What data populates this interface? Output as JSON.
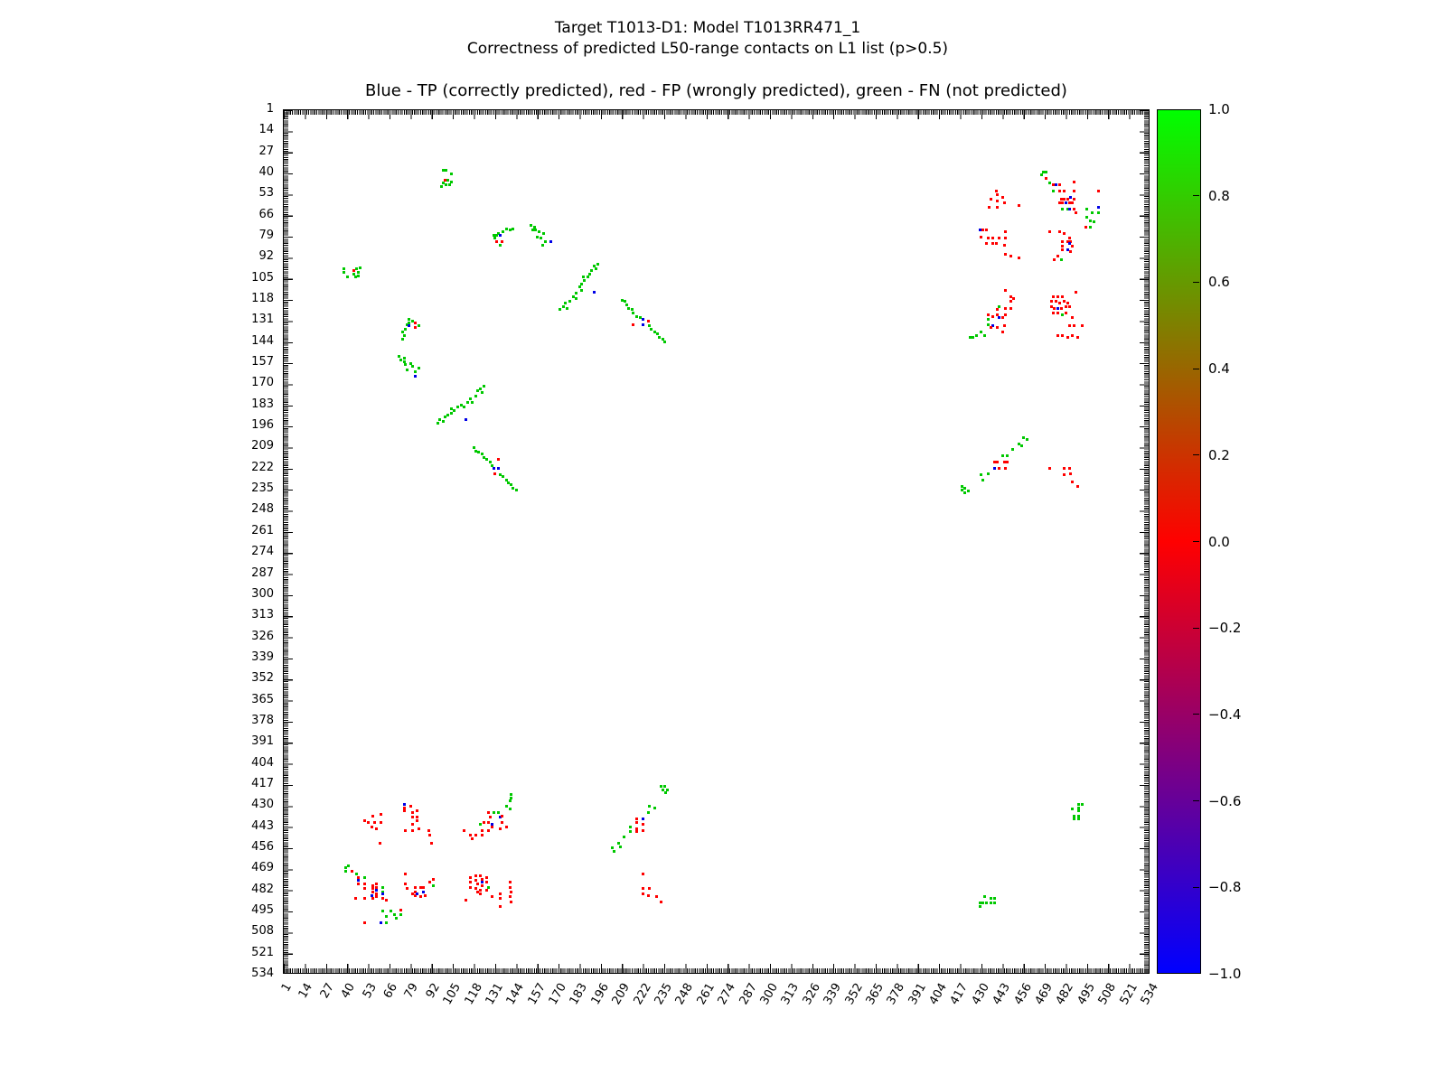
{
  "figure": {
    "title_line1": "Target T1013-D1: Model T1013RR471_1",
    "title_line2": "Correctness of predicted L50-range contacts on L1 list (p>0.5)",
    "axes_title": "Blue - TP (correctly predicted), red - FP (wrongly predicted), green - FN (not predicted)",
    "background": "#ffffff"
  },
  "chart_data": {
    "type": "scatter",
    "title": "Blue - TP (correctly predicted), red - FP (wrongly predicted), green - FN (not predicted)",
    "xlabel": "",
    "ylabel": "",
    "xlim": [
      1,
      534
    ],
    "ylim": [
      534,
      1
    ],
    "grid": false,
    "x_ticks": [
      1,
      14,
      27,
      40,
      53,
      66,
      79,
      92,
      105,
      118,
      131,
      144,
      157,
      170,
      183,
      196,
      209,
      222,
      235,
      248,
      261,
      274,
      287,
      300,
      313,
      326,
      339,
      352,
      365,
      378,
      391,
      404,
      417,
      430,
      443,
      456,
      469,
      482,
      495,
      508,
      521,
      534
    ],
    "y_ticks": [
      1,
      14,
      27,
      40,
      53,
      66,
      79,
      92,
      105,
      118,
      131,
      144,
      157,
      170,
      183,
      196,
      209,
      222,
      235,
      248,
      261,
      274,
      287,
      300,
      313,
      326,
      339,
      352,
      365,
      378,
      391,
      404,
      417,
      430,
      443,
      456,
      469,
      482,
      495,
      508,
      521,
      534
    ],
    "legend": [
      {
        "label": "TP (correctly predicted)",
        "color_name": "blue"
      },
      {
        "label": "FP (wrongly predicted)",
        "color_name": "red"
      },
      {
        "label": "FN (not predicted)",
        "color_name": "green"
      }
    ],
    "colors": {
      "TP": "#0000e6",
      "FP": "#ff0000",
      "FN": "#00c800"
    },
    "symmetric": true,
    "colorbar": {
      "min": -1.0,
      "max": 1.0,
      "tick_labels": [
        "1.0",
        "0.8",
        "0.6",
        "0.4",
        "0.2",
        "0.0",
        "−0.2",
        "−0.4",
        "−0.6",
        "−0.8",
        "−1.0"
      ],
      "gradient": {
        "top": "#00ff00",
        "middle": "#ff0000",
        "bottom": "#0000ff"
      }
    },
    "contacts": [
      [
        38,
        99,
        "G"
      ],
      [
        38,
        101,
        "G"
      ],
      [
        40,
        104,
        "G"
      ],
      [
        44,
        100,
        "R"
      ],
      [
        44,
        102,
        "G"
      ],
      [
        45,
        104,
        "G"
      ],
      [
        46,
        99,
        "G"
      ],
      [
        47,
        101,
        "G"
      ],
      [
        47,
        103,
        "G"
      ],
      [
        48,
        98,
        "G"
      ],
      [
        74,
        138,
        "G"
      ],
      [
        74,
        142,
        "G"
      ],
      [
        75,
        140,
        "G"
      ],
      [
        76,
        136,
        "G"
      ],
      [
        77,
        133,
        "G"
      ],
      [
        78,
        130,
        "G"
      ],
      [
        78,
        132,
        "G"
      ],
      [
        78,
        134,
        "B"
      ],
      [
        80,
        131,
        "G"
      ],
      [
        82,
        132,
        "R"
      ],
      [
        82,
        135,
        "R"
      ],
      [
        84,
        134,
        "G"
      ],
      [
        72,
        153,
        "G"
      ],
      [
        73,
        155,
        "G"
      ],
      [
        75,
        154,
        "G"
      ],
      [
        75,
        156,
        "G"
      ],
      [
        76,
        158,
        "G"
      ],
      [
        77,
        161,
        "G"
      ],
      [
        79,
        157,
        "G"
      ],
      [
        80,
        159,
        "G"
      ],
      [
        82,
        162,
        "G"
      ],
      [
        82,
        165,
        "B"
      ],
      [
        84,
        160,
        "G"
      ],
      [
        96,
        194,
        "G"
      ],
      [
        97,
        192,
        "G"
      ],
      [
        99,
        193,
        "G"
      ],
      [
        100,
        190,
        "G"
      ],
      [
        102,
        189,
        "G"
      ],
      [
        104,
        185,
        "G"
      ],
      [
        104,
        188,
        "G"
      ],
      [
        106,
        186,
        "G"
      ],
      [
        108,
        184,
        "G"
      ],
      [
        110,
        183,
        "G"
      ],
      [
        112,
        184,
        "G"
      ],
      [
        113,
        192,
        "B"
      ],
      [
        114,
        181,
        "G"
      ],
      [
        116,
        179,
        "G"
      ],
      [
        117,
        181,
        "G"
      ],
      [
        119,
        177,
        "G"
      ],
      [
        120,
        174,
        "G"
      ],
      [
        122,
        173,
        "G"
      ],
      [
        123,
        175,
        "G"
      ],
      [
        124,
        171,
        "G"
      ],
      [
        118,
        209,
        "G"
      ],
      [
        119,
        211,
        "G"
      ],
      [
        121,
        212,
        "G"
      ],
      [
        123,
        213,
        "G"
      ],
      [
        124,
        215,
        "G"
      ],
      [
        126,
        216,
        "G"
      ],
      [
        128,
        218,
        "G"
      ],
      [
        129,
        220,
        "G"
      ],
      [
        130,
        222,
        "B"
      ],
      [
        131,
        225,
        "R"
      ],
      [
        133,
        216,
        "R"
      ],
      [
        133,
        222,
        "B"
      ],
      [
        134,
        226,
        "G"
      ],
      [
        136,
        227,
        "G"
      ],
      [
        138,
        229,
        "G"
      ],
      [
        139,
        231,
        "G"
      ],
      [
        141,
        232,
        "G"
      ],
      [
        142,
        234,
        "G"
      ],
      [
        144,
        235,
        "G"
      ],
      [
        39,
        468,
        "G"
      ],
      [
        39,
        470,
        "G"
      ],
      [
        41,
        467,
        "G"
      ],
      [
        43,
        470,
        "R"
      ],
      [
        45,
        487,
        "R"
      ],
      [
        46,
        472,
        "G"
      ],
      [
        47,
        474,
        "R"
      ],
      [
        47,
        476,
        "B"
      ],
      [
        47,
        478,
        "R"
      ],
      [
        51,
        474,
        "G"
      ],
      [
        51,
        478,
        "R"
      ],
      [
        51,
        481,
        "R"
      ],
      [
        51,
        487,
        "R"
      ],
      [
        51,
        502,
        "R"
      ],
      [
        55,
        485,
        "B"
      ],
      [
        56,
        479,
        "R"
      ],
      [
        56,
        481,
        "R"
      ],
      [
        56,
        483,
        "R"
      ],
      [
        56,
        487,
        "R"
      ],
      [
        58,
        478,
        "R"
      ],
      [
        58,
        480,
        "R"
      ],
      [
        58,
        482,
        "B"
      ],
      [
        58,
        484,
        "R"
      ],
      [
        58,
        486,
        "R"
      ],
      [
        60,
        453,
        "R"
      ],
      [
        61,
        502,
        "B"
      ],
      [
        62,
        480,
        "G"
      ],
      [
        62,
        483,
        "G"
      ],
      [
        62,
        484,
        "B"
      ],
      [
        62,
        487,
        "R"
      ],
      [
        62,
        495,
        "G"
      ],
      [
        64,
        488,
        "R"
      ],
      [
        64,
        498,
        "G"
      ],
      [
        64,
        502,
        "G"
      ],
      [
        67,
        495,
        "G"
      ],
      [
        69,
        497,
        "G"
      ],
      [
        70,
        499,
        "G"
      ],
      [
        73,
        494,
        "R"
      ],
      [
        73,
        497,
        "G"
      ],
      [
        76,
        472,
        "R"
      ],
      [
        76,
        478,
        "R"
      ],
      [
        77,
        481,
        "R"
      ],
      [
        80,
        484,
        "R"
      ],
      [
        82,
        480,
        "R"
      ],
      [
        82,
        483,
        "R"
      ],
      [
        82,
        485,
        "R"
      ],
      [
        83,
        484,
        "B"
      ],
      [
        85,
        480,
        "R"
      ],
      [
        85,
        486,
        "R"
      ],
      [
        87,
        480,
        "R"
      ],
      [
        87,
        483,
        "B"
      ],
      [
        88,
        485,
        "R"
      ],
      [
        91,
        477,
        "R"
      ],
      [
        93,
        475,
        "R"
      ],
      [
        93,
        479,
        "G"
      ],
      [
        51,
        439,
        "R"
      ],
      [
        53,
        440,
        "R"
      ],
      [
        55,
        443,
        "R"
      ],
      [
        56,
        436,
        "R"
      ],
      [
        57,
        440,
        "R"
      ],
      [
        58,
        444,
        "R"
      ],
      [
        61,
        435,
        "R"
      ],
      [
        61,
        440,
        "R"
      ],
      [
        75,
        429,
        "B"
      ],
      [
        75,
        431,
        "R"
      ],
      [
        75,
        433,
        "R"
      ],
      [
        76,
        445,
        "R"
      ],
      [
        79,
        430,
        "R"
      ],
      [
        80,
        434,
        "R"
      ],
      [
        80,
        437,
        "R"
      ],
      [
        80,
        441,
        "R"
      ],
      [
        80,
        445,
        "R"
      ],
      [
        83,
        433,
        "R"
      ],
      [
        83,
        437,
        "R"
      ],
      [
        83,
        439,
        "R"
      ],
      [
        84,
        444,
        "R"
      ],
      [
        90,
        445,
        "R"
      ],
      [
        91,
        448,
        "R"
      ],
      [
        92,
        453,
        "R"
      ],
      [
        112,
        445,
        "R"
      ],
      [
        116,
        448,
        "R"
      ],
      [
        117,
        450,
        "R"
      ],
      [
        119,
        448,
        "R"
      ],
      [
        122,
        441,
        "G"
      ],
      [
        123,
        445,
        "R"
      ],
      [
        123,
        448,
        "R"
      ],
      [
        124,
        440,
        "R"
      ],
      [
        127,
        434,
        "R"
      ],
      [
        127,
        440,
        "R"
      ],
      [
        127,
        445,
        "R"
      ],
      [
        128,
        437,
        "R"
      ],
      [
        129,
        441,
        "B"
      ],
      [
        129,
        443,
        "R"
      ],
      [
        130,
        434,
        "G"
      ],
      [
        133,
        434,
        "G"
      ],
      [
        134,
        437,
        "B"
      ],
      [
        134,
        444,
        "R"
      ],
      [
        135,
        436,
        "R"
      ],
      [
        135,
        440,
        "R"
      ],
      [
        138,
        430,
        "G"
      ],
      [
        138,
        443,
        "R"
      ],
      [
        140,
        427,
        "G"
      ],
      [
        140,
        432,
        "G"
      ],
      [
        141,
        423,
        "G"
      ],
      [
        141,
        425,
        "G"
      ],
      [
        113,
        488,
        "R"
      ],
      [
        116,
        474,
        "R"
      ],
      [
        116,
        477,
        "R"
      ],
      [
        116,
        480,
        "R"
      ],
      [
        119,
        473,
        "R"
      ],
      [
        119,
        476,
        "R"
      ],
      [
        119,
        481,
        "R"
      ],
      [
        120,
        478,
        "R"
      ],
      [
        120,
        483,
        "R"
      ],
      [
        122,
        473,
        "R"
      ],
      [
        122,
        482,
        "R"
      ],
      [
        122,
        484,
        "R"
      ],
      [
        123,
        475,
        "R"
      ],
      [
        123,
        477,
        "B"
      ],
      [
        123,
        479,
        "R"
      ],
      [
        126,
        474,
        "R"
      ],
      [
        126,
        477,
        "R"
      ],
      [
        126,
        482,
        "R"
      ],
      [
        127,
        480,
        "G"
      ],
      [
        129,
        486,
        "R"
      ],
      [
        134,
        484,
        "R"
      ],
      [
        134,
        487,
        "R"
      ],
      [
        134,
        492,
        "R"
      ],
      [
        140,
        477,
        "R"
      ],
      [
        140,
        480,
        "R"
      ],
      [
        140,
        486,
        "R"
      ],
      [
        141,
        483,
        "R"
      ],
      [
        141,
        489,
        "R"
      ],
      [
        203,
        456,
        "G"
      ],
      [
        204,
        458,
        "G"
      ],
      [
        207,
        453,
        "G"
      ],
      [
        208,
        455,
        "G"
      ],
      [
        210,
        449,
        "G"
      ],
      [
        214,
        443,
        "G"
      ],
      [
        214,
        446,
        "G"
      ],
      [
        218,
        438,
        "R"
      ],
      [
        218,
        440,
        "R"
      ],
      [
        218,
        444,
        "R"
      ],
      [
        218,
        446,
        "R"
      ],
      [
        222,
        438,
        "B"
      ],
      [
        222,
        441,
        "R"
      ],
      [
        222,
        445,
        "R"
      ],
      [
        225,
        434,
        "G"
      ],
      [
        226,
        430,
        "G"
      ],
      [
        229,
        431,
        "G"
      ],
      [
        233,
        418,
        "G"
      ],
      [
        234,
        420,
        "G"
      ],
      [
        235,
        418,
        "G"
      ],
      [
        236,
        422,
        "G"
      ],
      [
        237,
        420,
        "G"
      ],
      [
        222,
        472,
        "R"
      ],
      [
        222,
        481,
        "R"
      ],
      [
        222,
        484,
        "R"
      ],
      [
        225,
        485,
        "R"
      ],
      [
        226,
        481,
        "R"
      ],
      [
        230,
        486,
        "R"
      ],
      [
        233,
        489,
        "R"
      ],
      [
        429,
        490,
        "G"
      ],
      [
        429,
        492,
        "G"
      ],
      [
        431,
        490,
        "G"
      ],
      [
        432,
        486,
        "G"
      ],
      [
        433,
        490,
        "G"
      ],
      [
        436,
        487,
        "G"
      ],
      [
        436,
        490,
        "G"
      ],
      [
        438,
        487,
        "G"
      ],
      [
        438,
        490,
        "G"
      ]
    ]
  }
}
